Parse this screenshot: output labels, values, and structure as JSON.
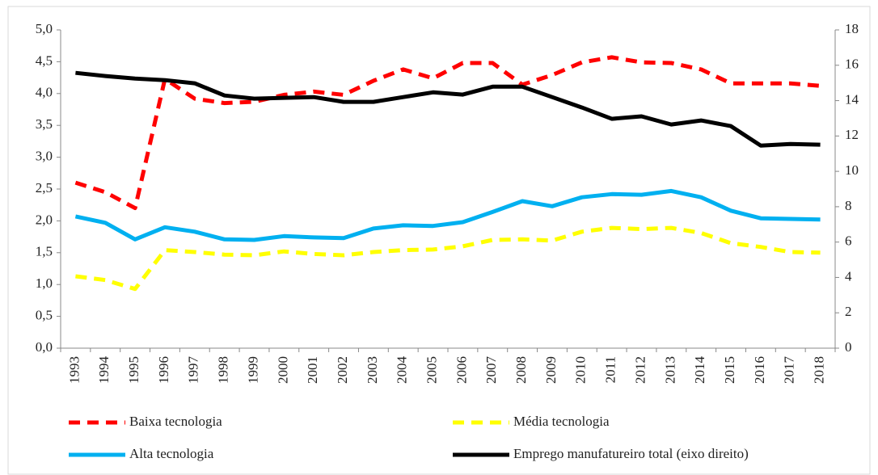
{
  "chart_data": {
    "type": "line",
    "categories": [
      "1993",
      "1994",
      "1995",
      "1996",
      "1997",
      "1998",
      "1999",
      "2000",
      "2001",
      "2002",
      "2003",
      "2004",
      "2005",
      "2006",
      "2007",
      "2008",
      "2009",
      "2010",
      "2011",
      "2012",
      "2013",
      "2014",
      "2015",
      "2016",
      "2017",
      "2018"
    ],
    "series": [
      {
        "name": "Baixa tecnologia",
        "color": "#ff0000",
        "dashed": true,
        "values": [
          2.6,
          2.45,
          2.2,
          4.23,
          3.92,
          3.85,
          3.87,
          3.98,
          4.03,
          3.98,
          4.2,
          4.38,
          4.24,
          4.48,
          4.48,
          4.14,
          4.29,
          4.49,
          4.57,
          4.49,
          4.48,
          4.38,
          4.16,
          4.16,
          4.16,
          4.12
        ]
      },
      {
        "name": "Média tecnologia",
        "color": "#ffff00",
        "dashed": true,
        "values": [
          1.13,
          1.07,
          0.93,
          1.54,
          1.51,
          1.47,
          1.46,
          1.52,
          1.48,
          1.46,
          1.51,
          1.54,
          1.55,
          1.6,
          1.7,
          1.71,
          1.69,
          1.83,
          1.89,
          1.87,
          1.89,
          1.81,
          1.65,
          1.59,
          1.51,
          1.5
        ]
      },
      {
        "name": "Alta tecnologia",
        "color": "#00b0f0",
        "dashed": false,
        "values": [
          2.07,
          1.97,
          1.71,
          1.9,
          1.83,
          1.71,
          1.7,
          1.76,
          1.74,
          1.73,
          1.88,
          1.93,
          1.92,
          1.98,
          2.14,
          2.31,
          2.23,
          2.37,
          2.42,
          2.41,
          2.47,
          2.37,
          2.16,
          2.04,
          2.03,
          2.02
        ]
      },
      {
        "name": "Emprego manufatureiro total (eixo direito)",
        "color": "#000000",
        "dashed": false,
        "axis": "y2",
        "values": [
          15.57,
          15.39,
          15.25,
          15.16,
          14.98,
          14.29,
          14.11,
          14.16,
          14.2,
          13.93,
          13.93,
          14.2,
          14.47,
          14.34,
          14.79,
          14.79,
          14.2,
          13.61,
          12.97,
          13.11,
          12.65,
          12.88,
          12.56,
          11.46,
          11.55,
          11.51
        ]
      }
    ],
    "ylim": [
      0,
      5
    ],
    "yticks": [
      {
        "value": 0,
        "label": "0,0"
      },
      {
        "value": 0.5,
        "label": "0,5"
      },
      {
        "value": 1,
        "label": "1,0"
      },
      {
        "value": 1.5,
        "label": "1,5"
      },
      {
        "value": 2,
        "label": "2,0"
      },
      {
        "value": 2.5,
        "label": "2,5"
      },
      {
        "value": 3,
        "label": "3,0"
      },
      {
        "value": 3.5,
        "label": "3,5"
      },
      {
        "value": 4,
        "label": "4,0"
      },
      {
        "value": 4.5,
        "label": "4,5"
      },
      {
        "value": 5,
        "label": "5,0"
      }
    ],
    "y2lim": [
      0,
      18
    ],
    "y2ticks": [
      0,
      2,
      4,
      6,
      8,
      10,
      12,
      14,
      16,
      18
    ],
    "legend": "bottom"
  }
}
